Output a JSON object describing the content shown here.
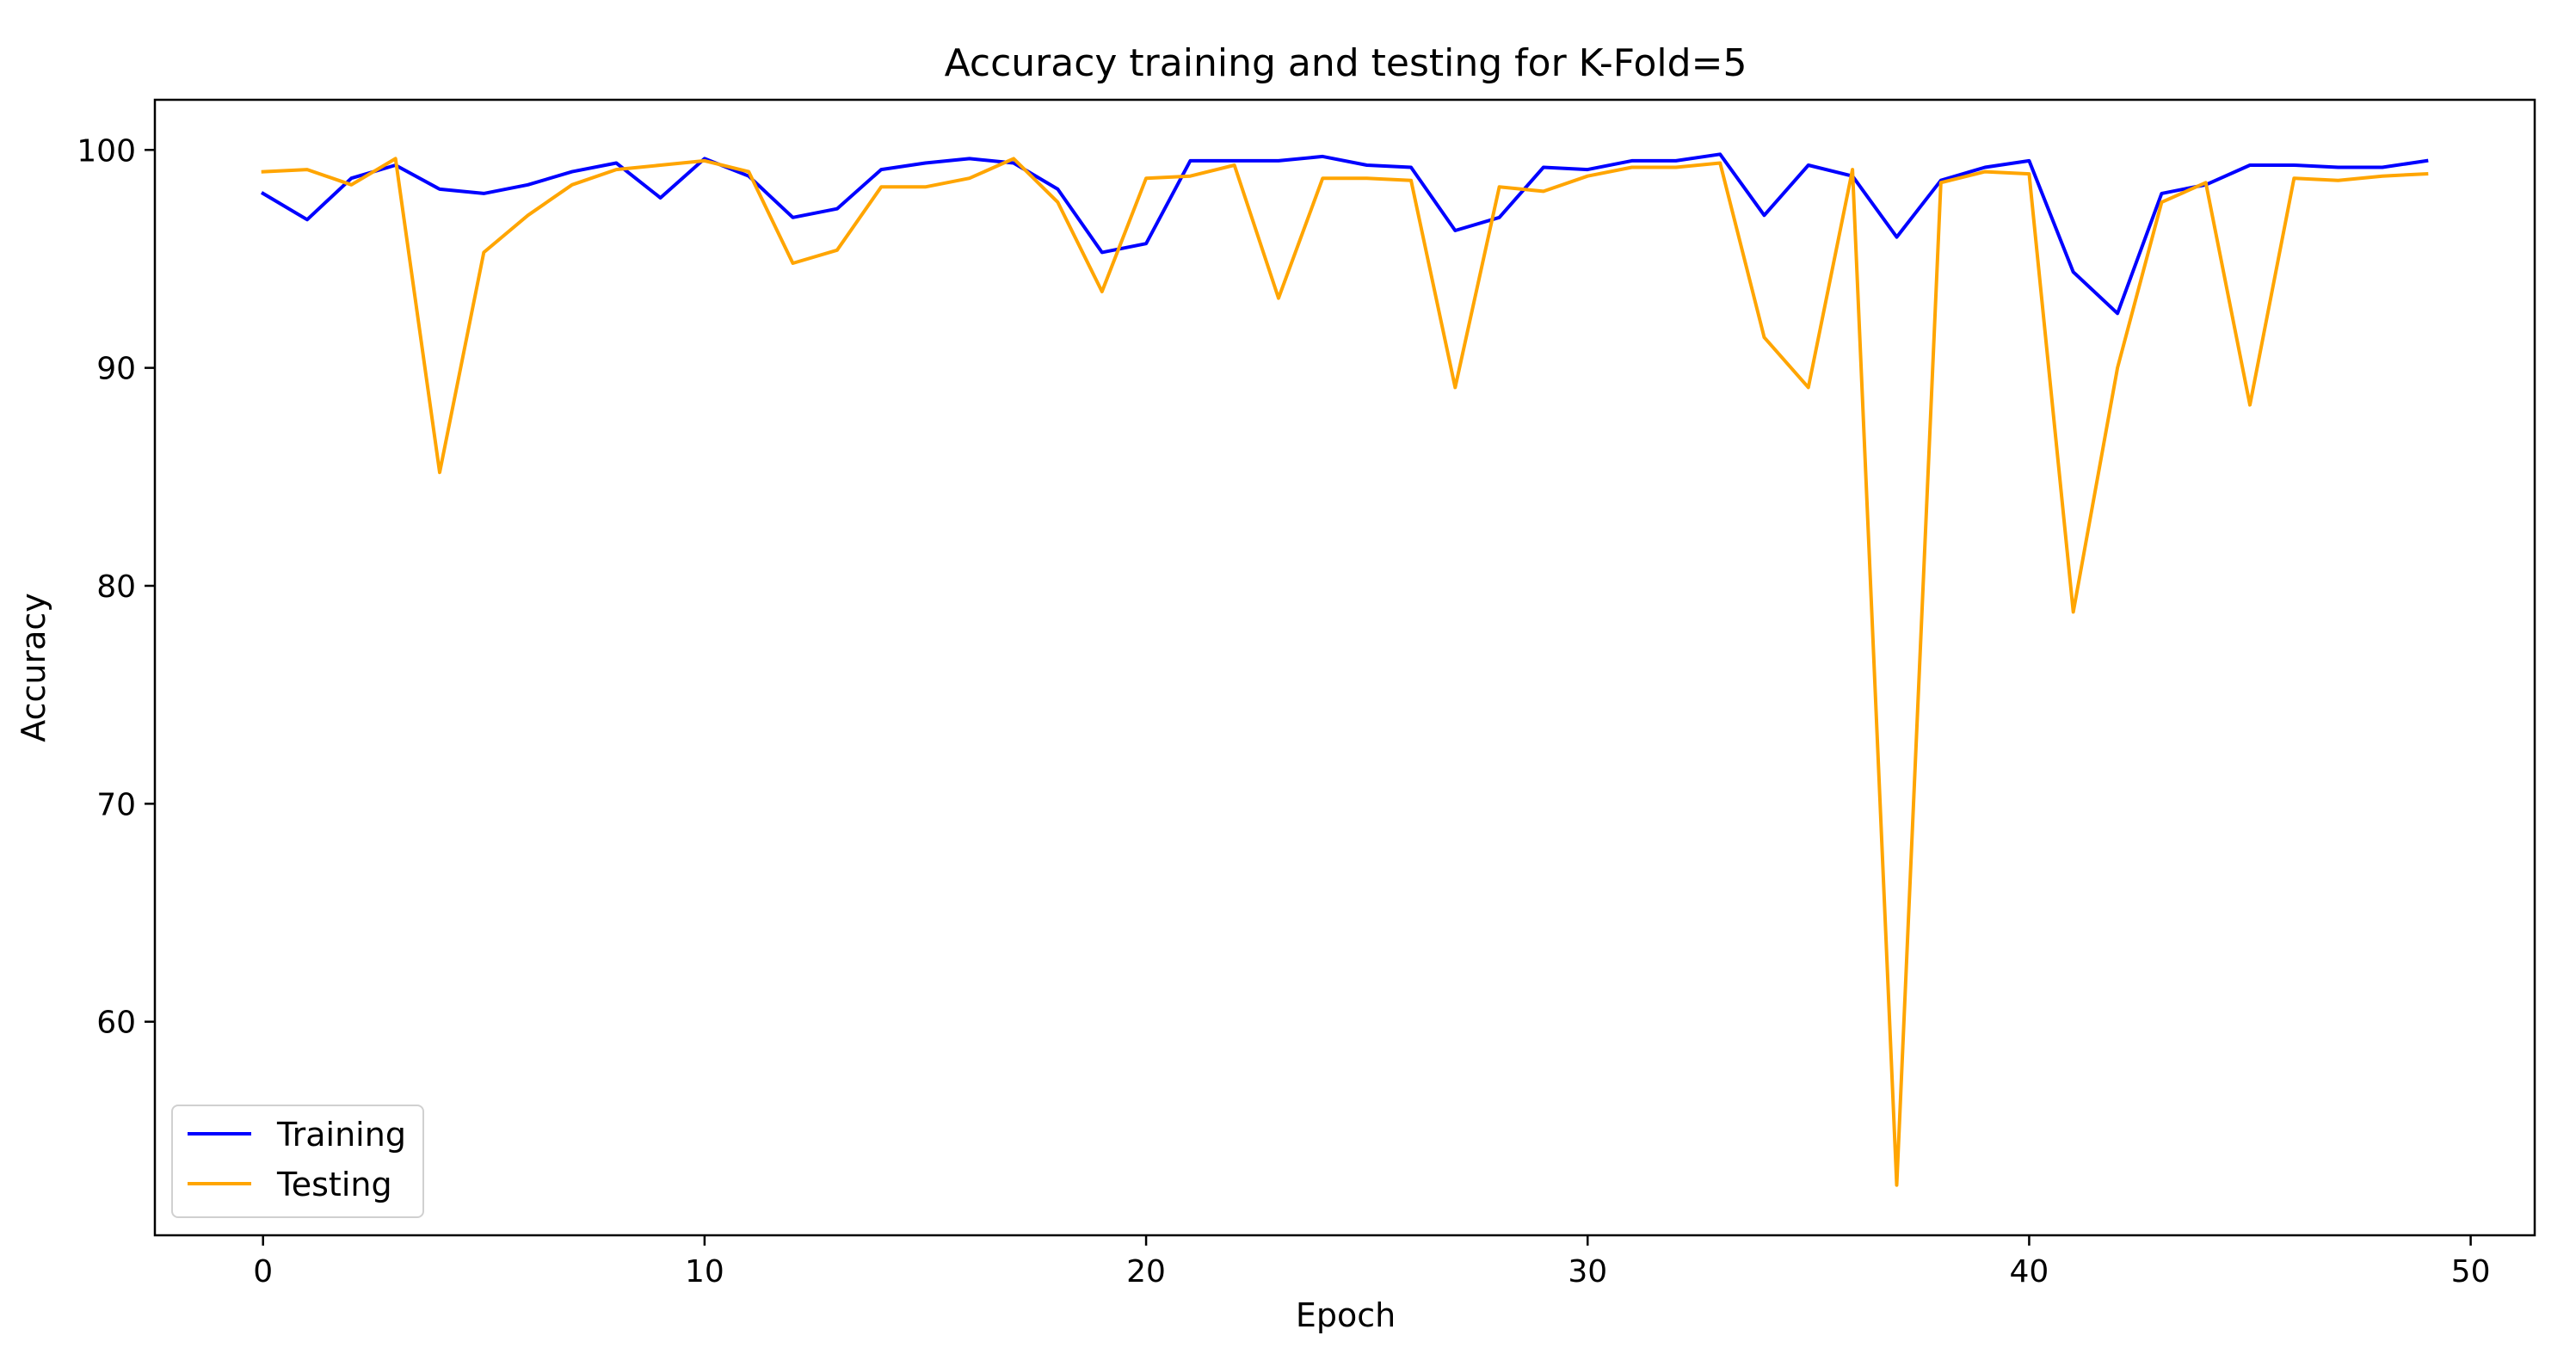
{
  "chart_data": {
    "type": "line",
    "title": "Accuracy training and testing for K-Fold=5",
    "xlabel": "Epoch",
    "ylabel": "Accuracy",
    "xlim": [
      -2.45,
      51.45
    ],
    "ylim": [
      50.2,
      102.3
    ],
    "xticks": [
      0,
      10,
      20,
      30,
      40,
      50
    ],
    "yticks": [
      60,
      70,
      80,
      90,
      100
    ],
    "grid": false,
    "legend_position": "lower-left",
    "x": [
      0,
      1,
      2,
      3,
      4,
      5,
      6,
      7,
      8,
      9,
      10,
      11,
      12,
      13,
      14,
      15,
      16,
      17,
      18,
      19,
      20,
      21,
      22,
      23,
      24,
      25,
      26,
      27,
      28,
      29,
      30,
      31,
      32,
      33,
      34,
      35,
      36,
      37,
      38,
      39,
      40,
      41,
      42,
      43,
      44,
      45,
      46,
      47,
      48,
      49
    ],
    "series": [
      {
        "name": "Training",
        "color": "#0000ff",
        "values": [
          98.0,
          96.8,
          98.7,
          99.3,
          98.2,
          98.0,
          98.4,
          99.0,
          99.4,
          97.8,
          99.6,
          98.8,
          96.9,
          97.3,
          99.1,
          99.4,
          99.6,
          99.4,
          98.2,
          95.3,
          95.7,
          99.5,
          99.5,
          99.5,
          99.7,
          99.3,
          99.2,
          96.3,
          96.9,
          99.2,
          99.1,
          99.5,
          99.5,
          99.8,
          97.0,
          99.3,
          98.8,
          96.0,
          98.6,
          99.2,
          99.5,
          94.4,
          92.5,
          98.0,
          98.4,
          99.3,
          99.3,
          99.2,
          99.2,
          99.5
        ]
      },
      {
        "name": "Testing",
        "color": "#ffa500",
        "values": [
          99.0,
          99.1,
          98.4,
          99.6,
          85.2,
          95.3,
          97.0,
          98.4,
          99.1,
          99.3,
          99.5,
          99.0,
          94.8,
          95.4,
          98.3,
          98.3,
          98.7,
          99.6,
          97.6,
          93.5,
          98.7,
          98.8,
          99.3,
          93.2,
          98.7,
          98.7,
          98.6,
          89.1,
          98.3,
          98.1,
          98.8,
          99.2,
          99.2,
          99.4,
          91.4,
          89.1,
          99.1,
          52.5,
          98.5,
          99.0,
          98.9,
          78.8,
          90.0,
          97.6,
          98.5,
          88.3,
          98.7,
          98.6,
          98.8,
          98.9
        ]
      }
    ]
  }
}
